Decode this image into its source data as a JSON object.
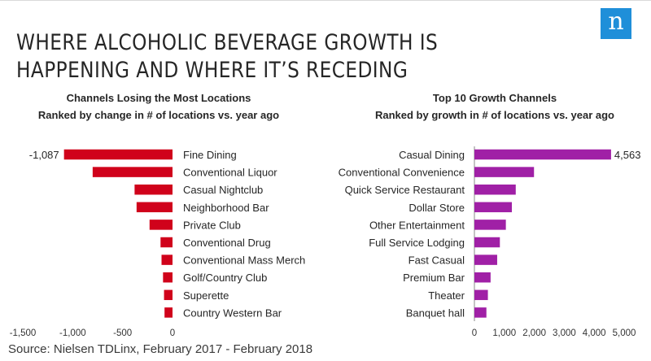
{
  "headline": {
    "line1": "WHERE ALCOHOLIC BEVERAGE GROWTH IS",
    "line2": "HAPPENING AND WHERE IT’S RECEDING"
  },
  "logo": {
    "letter": "n",
    "color": "#1f8fd9"
  },
  "source": "Source: Nielsen TDLinx, February 2017 - February 2018",
  "chart_data": [
    {
      "type": "bar",
      "orientation": "horizontal",
      "title": "Channels Losing the Most Locations",
      "subtitle": "Ranked by change in # of locations vs. year ago",
      "color": "#d0021b",
      "categories": [
        "Fine Dining",
        "Conventional Liquor",
        "Casual Nightclub",
        "Neighborhood Bar",
        "Private Club",
        "Conventional Drug",
        "Conventional Mass Merch",
        "Golf/Country Club",
        "Superette",
        "Country Western Bar"
      ],
      "values": [
        -1087,
        -800,
        -380,
        -360,
        -230,
        -120,
        -110,
        -95,
        -85,
        -80
      ],
      "data_labels": [
        "-1,087",
        "",
        "",
        "",
        "",
        "",
        "",
        "",
        "",
        ""
      ],
      "xlim": [
        -1500,
        0
      ],
      "xticks": [
        -1500,
        -1000,
        -500,
        0
      ],
      "xtick_labels": [
        "-1,500",
        "-1,000",
        "-500",
        "0"
      ]
    },
    {
      "type": "bar",
      "orientation": "horizontal",
      "title": "Top 10 Growth Channels",
      "subtitle": "Ranked by growth in # of locations vs. year ago",
      "color": "#a020a6",
      "categories": [
        "Casual Dining",
        "Conventional Convenience",
        "Quick Service Restaurant",
        "Dollar Store",
        "Other Entertainment",
        "Full Service Lodging",
        "Fast Casual",
        "Premium Bar",
        "Theater",
        "Banquet hall"
      ],
      "values": [
        4563,
        1990,
        1380,
        1250,
        1050,
        850,
        760,
        540,
        450,
        400
      ],
      "data_labels": [
        "4,563",
        "",
        "",
        "",
        "",
        "",
        "",
        "",
        "",
        ""
      ],
      "xlim": [
        0,
        5000
      ],
      "xticks": [
        0,
        1000,
        2000,
        3000,
        4000,
        5000
      ],
      "xtick_labels": [
        "0",
        "1,000",
        "2,000",
        "3,000",
        "4,000",
        "5,000"
      ]
    }
  ]
}
